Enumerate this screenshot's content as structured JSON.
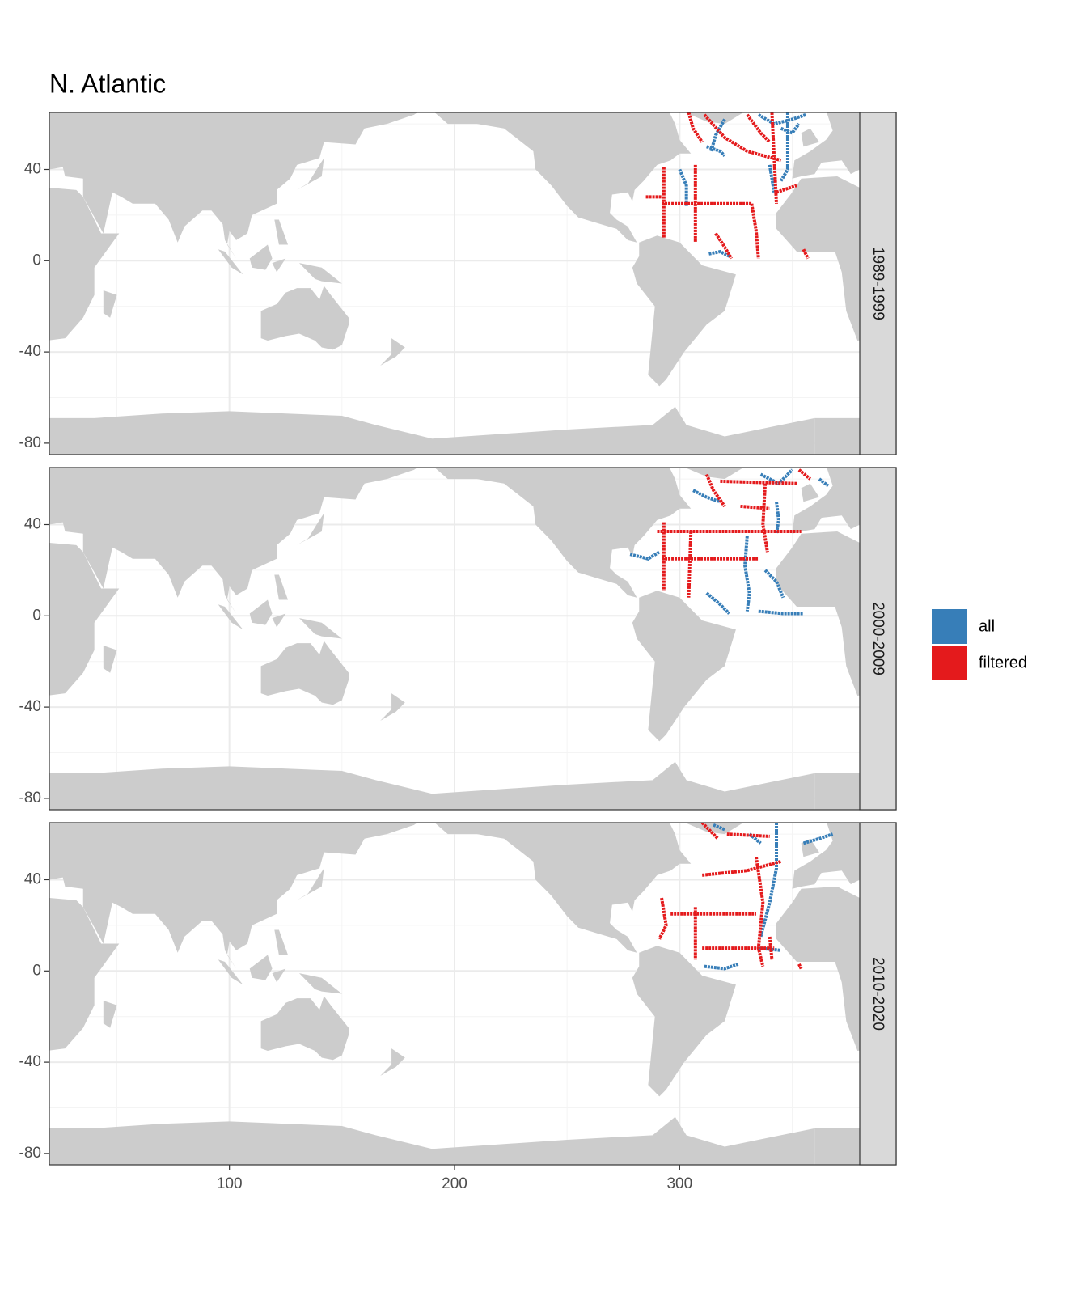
{
  "chart_data": {
    "type": "line",
    "title": "N. Atlantic",
    "xlim": [
      20,
      380
    ],
    "ylim": [
      -85,
      65
    ],
    "xticks": [
      100,
      200,
      300
    ],
    "yticks": [
      -80,
      -40,
      0,
      40
    ],
    "grid": true,
    "series": [
      {
        "name": "all",
        "color": "#377eb8"
      },
      {
        "name": "filtered",
        "color": "#e41a1c"
      }
    ],
    "panels": [
      {
        "label": "1989-1999",
        "series": [
          {
            "x": [
              312,
              318,
              320,
              null,
              348,
              348,
              345,
              null,
              335,
              342,
              350,
              356,
              null,
              303,
              303,
              300,
              null,
              313,
              318,
              322,
              null,
              320,
              316,
              314,
              null,
              345,
              350,
              353,
              null,
              340,
              342
            ],
            "values": [
              50,
              48,
              46,
              null,
              65,
              40,
              35,
              null,
              64,
              60,
              62,
              64,
              null,
              24,
              33,
              40,
              null,
              3,
              4,
              2,
              null,
              62,
              55,
              48,
              null,
              58,
              56,
              60,
              null,
              42,
              30
            ]
          },
          {
            "x": [
              292,
              332,
              null,
              307,
              307,
              null,
              293,
              293,
              null,
              332,
              334,
              335,
              null,
              341,
              342,
              343,
              null,
              311,
              320,
              330,
              345,
              null,
              316,
              320,
              323,
              null,
              304,
              306,
              310,
              null,
              330,
              336,
              340,
              null,
              285,
              292,
              null,
              343,
              352,
              null,
              355,
              357
            ],
            "values": [
              25,
              25,
              null,
              42,
              8,
              null,
              41,
              10,
              null,
              25,
              13,
              1,
              null,
              65,
              45,
              25,
              null,
              64,
              54,
              48,
              44,
              null,
              12,
              6,
              1,
              null,
              65,
              58,
              52,
              null,
              64,
              56,
              52,
              null,
              28,
              28,
              null,
              30,
              33,
              null,
              5,
              1
            ]
          }
        ]
      },
      {
        "label": "2000-2009",
        "series": [
          {
            "x": [
              343,
              344,
              343,
              null,
              362,
              366,
              null,
              330,
              329,
              331,
              330,
              null,
              278,
              286,
              291,
              null,
              312,
              318,
              322,
              null,
              335,
              346,
              355,
              null,
              336,
              344,
              350,
              null,
              306,
              312,
              318,
              null,
              338,
              343,
              346
            ],
            "values": [
              50,
              42,
              36,
              null,
              60,
              57,
              null,
              35,
              22,
              10,
              2,
              null,
              27,
              25,
              28,
              null,
              10,
              5,
              1,
              null,
              2,
              1,
              1,
              null,
              62,
              58,
              64,
              null,
              55,
              52,
              50,
              null,
              20,
              15,
              8
            ]
          },
          {
            "x": [
              292,
              335,
              null,
              290,
              354,
              null,
              293,
              293,
              null,
              318,
              352,
              null,
              338,
              337,
              339,
              null,
              305,
              304,
              null,
              312,
              315,
              320,
              null,
              353,
              358,
              null,
              327,
              340
            ],
            "values": [
              25,
              25,
              null,
              37,
              37,
              null,
              41,
              11,
              null,
              59,
              58,
              null,
              58,
              40,
              28,
              null,
              37,
              8,
              null,
              62,
              55,
              48,
              null,
              64,
              60,
              null,
              48,
              47
            ]
          }
        ]
      },
      {
        "label": "2010-2020",
        "series": [
          {
            "x": [
              343,
              343,
              340,
              336,
              null,
              311,
              320,
              326,
              null,
              335,
              345,
              null,
              355,
              362,
              368,
              null,
              331,
              336,
              null,
              315,
              320
            ],
            "values": [
              65,
              45,
              30,
              15,
              null,
              2,
              1,
              3,
              null,
              10,
              9,
              null,
              56,
              58,
              60,
              null,
              60,
              56,
              null,
              64,
              62
            ]
          },
          {
            "x": [
              296,
              334,
              null,
              307,
              307,
              null,
              292,
              294,
              291,
              null,
              310,
              342,
              null,
              310,
              330,
              345,
              null,
              334,
              337,
              335,
              337,
              null,
              310,
              317,
              null,
              321,
              340,
              null,
              353,
              354,
              null,
              340,
              341
            ],
            "values": [
              25,
              25,
              null,
              28,
              5,
              null,
              32,
              20,
              14,
              null,
              10,
              10,
              null,
              42,
              44,
              48,
              null,
              50,
              30,
              10,
              2,
              null,
              65,
              58,
              null,
              60,
              59,
              null,
              3,
              1,
              null,
              15,
              5
            ]
          }
        ]
      }
    ]
  }
}
